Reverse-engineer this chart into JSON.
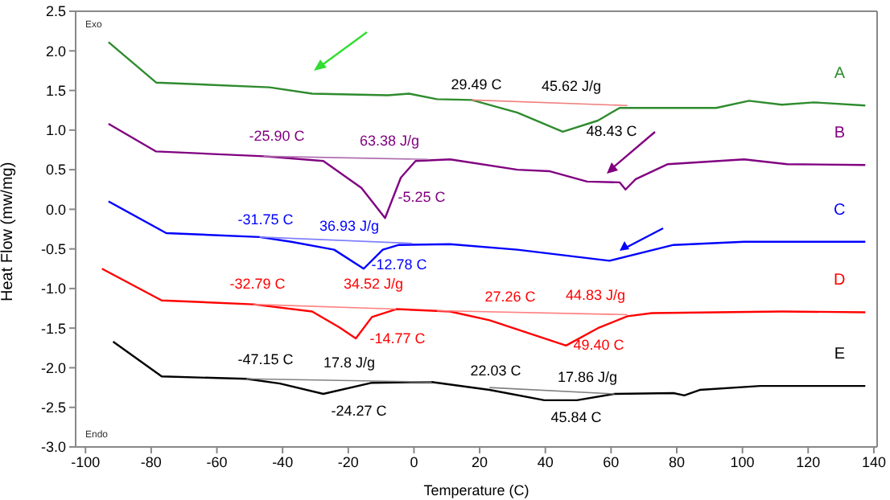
{
  "chart_data": {
    "type": "line",
    "xlabel": "Temperature (C)",
    "ylabel": "Heat Flow (mw/mg)",
    "xlim": [
      -103,
      141
    ],
    "ylim": [
      -3,
      2.5
    ],
    "xticks": [
      -100,
      -80,
      -60,
      -40,
      -20,
      0,
      20,
      40,
      60,
      80,
      100,
      120,
      140
    ],
    "yticks": [
      {
        "value": -3,
        "label": "-3.0"
      },
      {
        "value": -2.5,
        "label": "-2.5"
      },
      {
        "value": -2,
        "label": "-2.0"
      },
      {
        "value": -1.5,
        "label": "-1.5"
      },
      {
        "value": -1,
        "label": "-1.0"
      },
      {
        "value": -0.5,
        "label": "-0.5"
      },
      {
        "value": 0,
        "label": "0.0"
      },
      {
        "value": 0.5,
        "label": "0.5"
      },
      {
        "value": 1,
        "label": "1.0"
      },
      {
        "value": 1.5,
        "label": "1.5"
      },
      {
        "value": 2,
        "label": "2.0"
      },
      {
        "value": 2.5,
        "label": "2.5"
      }
    ],
    "legend": false,
    "marker": "none",
    "line_style": "solid",
    "series": [
      {
        "name": "A",
        "color": "#2e8b2e",
        "x": [
          -93,
          -78.5,
          -44,
          -31,
          -8,
          -1.5,
          7,
          17.6,
          31.5,
          45.3,
          56,
          62.6,
          72.4,
          92,
          102,
          112,
          121.7,
          137.4
        ],
        "values": [
          2.11,
          1.6,
          1.54,
          1.46,
          1.44,
          1.46,
          1.39,
          1.38,
          1.22,
          0.98,
          1.12,
          1.28,
          1.28,
          1.28,
          1.37,
          1.32,
          1.35,
          1.31
        ]
      },
      {
        "name": "B",
        "color": "#800080",
        "x": [
          -93,
          -78.5,
          -45.8,
          -27.6,
          -16,
          -8.8,
          -4,
          0.5,
          11,
          31.5,
          41.4,
          52.7,
          62.6,
          64.4,
          67.5,
          77.3,
          100.5,
          113.6,
          137.4
        ],
        "values": [
          1.08,
          0.73,
          0.67,
          0.61,
          0.27,
          -0.11,
          0.4,
          0.61,
          0.63,
          0.5,
          0.48,
          0.35,
          0.34,
          0.25,
          0.38,
          0.57,
          0.63,
          0.57,
          0.56
        ]
      },
      {
        "name": "C",
        "color": "#0000ff",
        "x": [
          -93,
          -75.4,
          -47,
          -37.4,
          -24.3,
          -15.3,
          -9.5,
          -4.6,
          11,
          31.5,
          59.5,
          79,
          100.5,
          137.4
        ],
        "values": [
          0.1,
          -0.3,
          -0.35,
          -0.41,
          -0.51,
          -0.75,
          -0.51,
          -0.45,
          -0.44,
          -0.51,
          -0.65,
          -0.45,
          -0.41,
          -0.41
        ]
      },
      {
        "name": "D",
        "color": "#ff0000",
        "x": [
          -95,
          -76.8,
          -48.8,
          -31,
          -22.7,
          -17.7,
          -12.8,
          -5.4,
          11,
          23,
          46.3,
          56,
          65,
          72.4,
          112,
          137.4
        ],
        "values": [
          -0.75,
          -1.15,
          -1.2,
          -1.29,
          -1.49,
          -1.63,
          -1.36,
          -1.26,
          -1.29,
          -1.4,
          -1.72,
          -1.5,
          -1.35,
          -1.31,
          -1.29,
          -1.3
        ]
      },
      {
        "name": "E",
        "color": "#000000",
        "x": [
          -91.6,
          -76.8,
          -51,
          -40.8,
          -27.6,
          -12.8,
          5.4,
          23,
          39.7,
          49.6,
          61,
          79,
          82.3,
          87,
          105.4,
          137.4
        ],
        "values": [
          -1.67,
          -2.11,
          -2.14,
          -2.2,
          -2.33,
          -2.19,
          -2.18,
          -2.28,
          -2.41,
          -2.41,
          -2.33,
          -2.32,
          -2.35,
          -2.28,
          -2.23,
          -2.23
        ]
      },
      {
        "color": "#f08080",
        "x": [
          17.6,
          65
        ],
        "values": [
          1.38,
          1.31
        ]
      },
      {
        "color": "#b070b0",
        "x": [
          -45.8,
          4.4
        ],
        "values": [
          0.67,
          0.63
        ]
      },
      {
        "color": "#8080ff",
        "x": [
          -47,
          -0.5
        ],
        "values": [
          -0.35,
          -0.43
        ]
      },
      {
        "color": "#ff8080",
        "x": [
          -48.8,
          -5.4
        ],
        "values": [
          -1.2,
          -1.26
        ]
      },
      {
        "color": "#ff8080",
        "x": [
          7,
          65
        ],
        "values": [
          -1.28,
          -1.33
        ]
      },
      {
        "color": "#808080",
        "x": [
          -51,
          5.4
        ],
        "values": [
          -2.14,
          -2.18
        ]
      },
      {
        "color": "#808080",
        "x": [
          23,
          61
        ],
        "values": [
          -2.25,
          -2.33
        ]
      }
    ],
    "annotations": [
      "Exo",
      "Endo",
      "29.49 C",
      "45.62 J/g",
      "48.43 C",
      "-25.90 C",
      "63.38 J/g",
      "-5.25 C",
      "-31.75 C",
      "36.93 J/g",
      "-12.78 C",
      "-32.79 C",
      "34.52 J/g",
      "-14.77 C",
      "27.26 C",
      "44.83 J/g",
      "49.40 C",
      "-47.15 C",
      "17.8 J/g",
      "-24.27 C",
      "22.03 C",
      "17.86 J/g",
      "45.84 C"
    ]
  }
}
